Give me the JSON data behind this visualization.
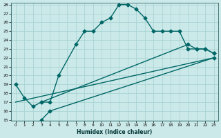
{
  "xlabel": "Humidex (Indice chaleur)",
  "bg_color": "#cce9e9",
  "grid_color": "#aad4d4",
  "line_color": "#006666",
  "line1_x": [
    0,
    1,
    2,
    3,
    4,
    5,
    7,
    8,
    9,
    10,
    11,
    12,
    13,
    14,
    15,
    16,
    17,
    18,
    19,
    20,
    21,
    22,
    23
  ],
  "line1_y": [
    19,
    17.5,
    16.5,
    17,
    17,
    20,
    23.5,
    25,
    25,
    26,
    26.5,
    28,
    28,
    27.5,
    26.5,
    25,
    25,
    25,
    25,
    23,
    23,
    23,
    22.5
  ],
  "line2_x": [
    0,
    23
  ],
  "line2_y": [
    17,
    22
  ],
  "line3_x": [
    3,
    4,
    23
  ],
  "line3_y": [
    15,
    16,
    22
  ],
  "line4_x": [
    3,
    20,
    21,
    22,
    23
  ],
  "line4_y": [
    17,
    23.5,
    23,
    23,
    22.5
  ],
  "ylim": [
    15,
    28
  ],
  "xlim": [
    -0.5,
    23.5
  ],
  "yticks": [
    15,
    16,
    17,
    18,
    19,
    20,
    21,
    22,
    23,
    24,
    25,
    26,
    27,
    28
  ],
  "xticks": [
    0,
    1,
    2,
    3,
    4,
    5,
    6,
    7,
    8,
    9,
    10,
    11,
    12,
    13,
    14,
    15,
    16,
    17,
    18,
    19,
    20,
    21,
    22,
    23
  ]
}
